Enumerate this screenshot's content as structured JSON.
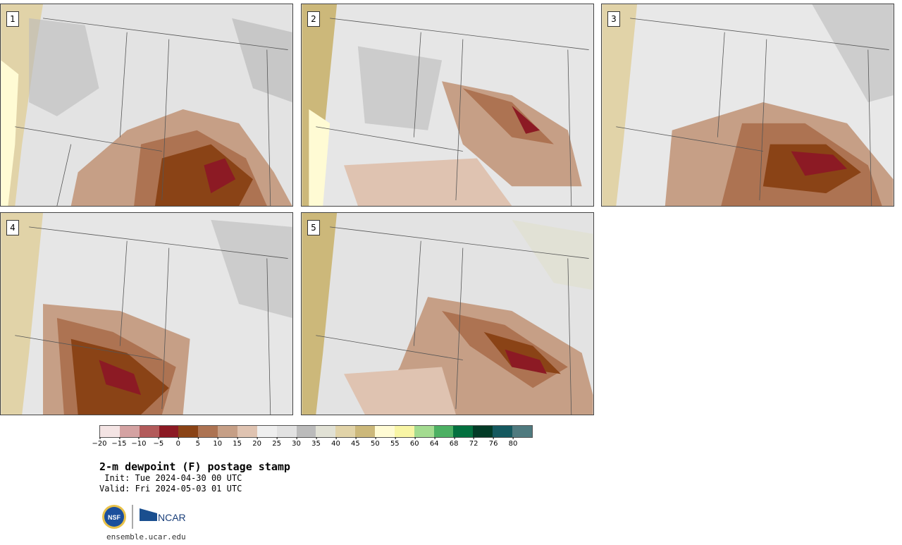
{
  "panels": [
    {
      "label": "1"
    },
    {
      "label": "2"
    },
    {
      "label": "3"
    },
    {
      "label": "4"
    },
    {
      "label": "5"
    }
  ],
  "legend": {
    "colors": [
      "#f4e4e4",
      "#d4a2a2",
      "#b25a5a",
      "#8c1a24",
      "#8a4316",
      "#ad7352",
      "#c69f86",
      "#dfc3b1",
      "#efefef",
      "#e2e2e2",
      "#bbbbbb",
      "#e1e1d5",
      "#e1d3a8",
      "#ccb87a",
      "#fffbd4",
      "#f8f5a5",
      "#a3db90",
      "#4cb063",
      "#03703f",
      "#033b27",
      "#15595f",
      "#4f7a7f"
    ],
    "ticks": [
      "−20",
      "−15",
      "−10",
      "−5",
      "0",
      "5",
      "10",
      "15",
      "20",
      "25",
      "30",
      "35",
      "40",
      "45",
      "50",
      "55",
      "60",
      "64",
      "68",
      "72",
      "76",
      "80"
    ]
  },
  "title": "2-m dewpoint (F) postage stamp",
  "init": " Init: Tue 2024-04-30 00 UTC",
  "valid": "Valid: Fri 2024-05-03 01 UTC",
  "logos": {
    "nsf": "NSF",
    "ncar": "NCAR"
  },
  "url": "ensemble.ucar.edu",
  "icons": [
    "nsf-logo-icon",
    "ncar-logo-icon"
  ]
}
